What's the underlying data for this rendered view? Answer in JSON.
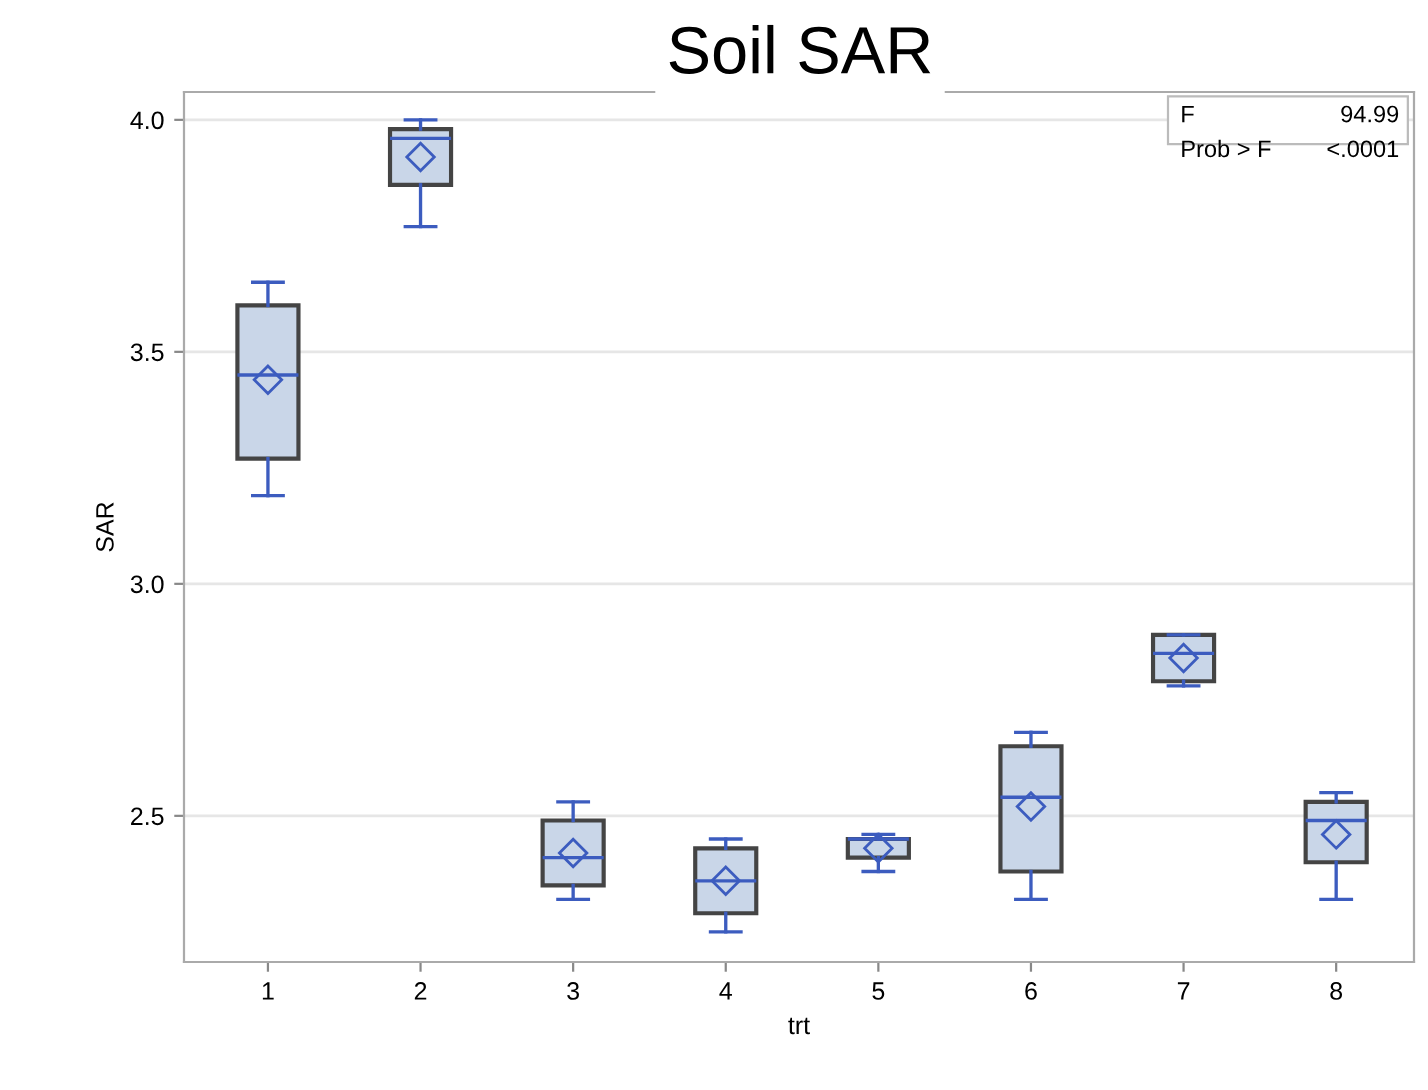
{
  "chart_data": {
    "type": "box",
    "title": "Soil SAR",
    "xlabel": "trt",
    "ylabel": "SAR",
    "categories": [
      "1",
      "2",
      "3",
      "4",
      "5",
      "6",
      "7",
      "8"
    ],
    "series": [
      {
        "color": "#c9d6e8",
        "boxes": [
          {
            "low": 3.19,
            "q1": 3.27,
            "median": 3.45,
            "q3": 3.6,
            "high": 3.65,
            "mean": 3.44
          },
          {
            "low": 3.77,
            "q1": 3.86,
            "median": 3.96,
            "q3": 3.98,
            "high": 4.0,
            "mean": 3.92
          },
          {
            "low": 2.32,
            "q1": 2.35,
            "median": 2.41,
            "q3": 2.49,
            "high": 2.53,
            "mean": 2.42
          },
          {
            "low": 2.25,
            "q1": 2.29,
            "median": 2.36,
            "q3": 2.43,
            "high": 2.45,
            "mean": 2.36
          },
          {
            "low": 2.38,
            "q1": 2.41,
            "median": 2.45,
            "q3": 2.45,
            "high": 2.46,
            "mean": 2.43
          },
          {
            "low": 2.32,
            "q1": 2.38,
            "median": 2.54,
            "q3": 2.65,
            "high": 2.68,
            "mean": 2.52
          },
          {
            "low": 2.78,
            "q1": 2.79,
            "median": 2.85,
            "q3": 2.89,
            "high": 2.89,
            "mean": 2.84
          },
          {
            "low": 2.32,
            "q1": 2.4,
            "median": 2.49,
            "q3": 2.53,
            "high": 2.55,
            "mean": 2.46
          }
        ]
      }
    ],
    "ylim": [
      2.185,
      4.06
    ],
    "yticks": [
      {
        "value": 2.5,
        "label": "2.5"
      },
      {
        "value": 3.0,
        "label": "3.0"
      },
      {
        "value": 3.5,
        "label": "3.5"
      },
      {
        "value": 4.0,
        "label": "4.0"
      }
    ],
    "grid": "y",
    "marker": "diamond",
    "annotations": [
      "F",
      "94.99",
      "Prob > F",
      "<.0001"
    ]
  }
}
